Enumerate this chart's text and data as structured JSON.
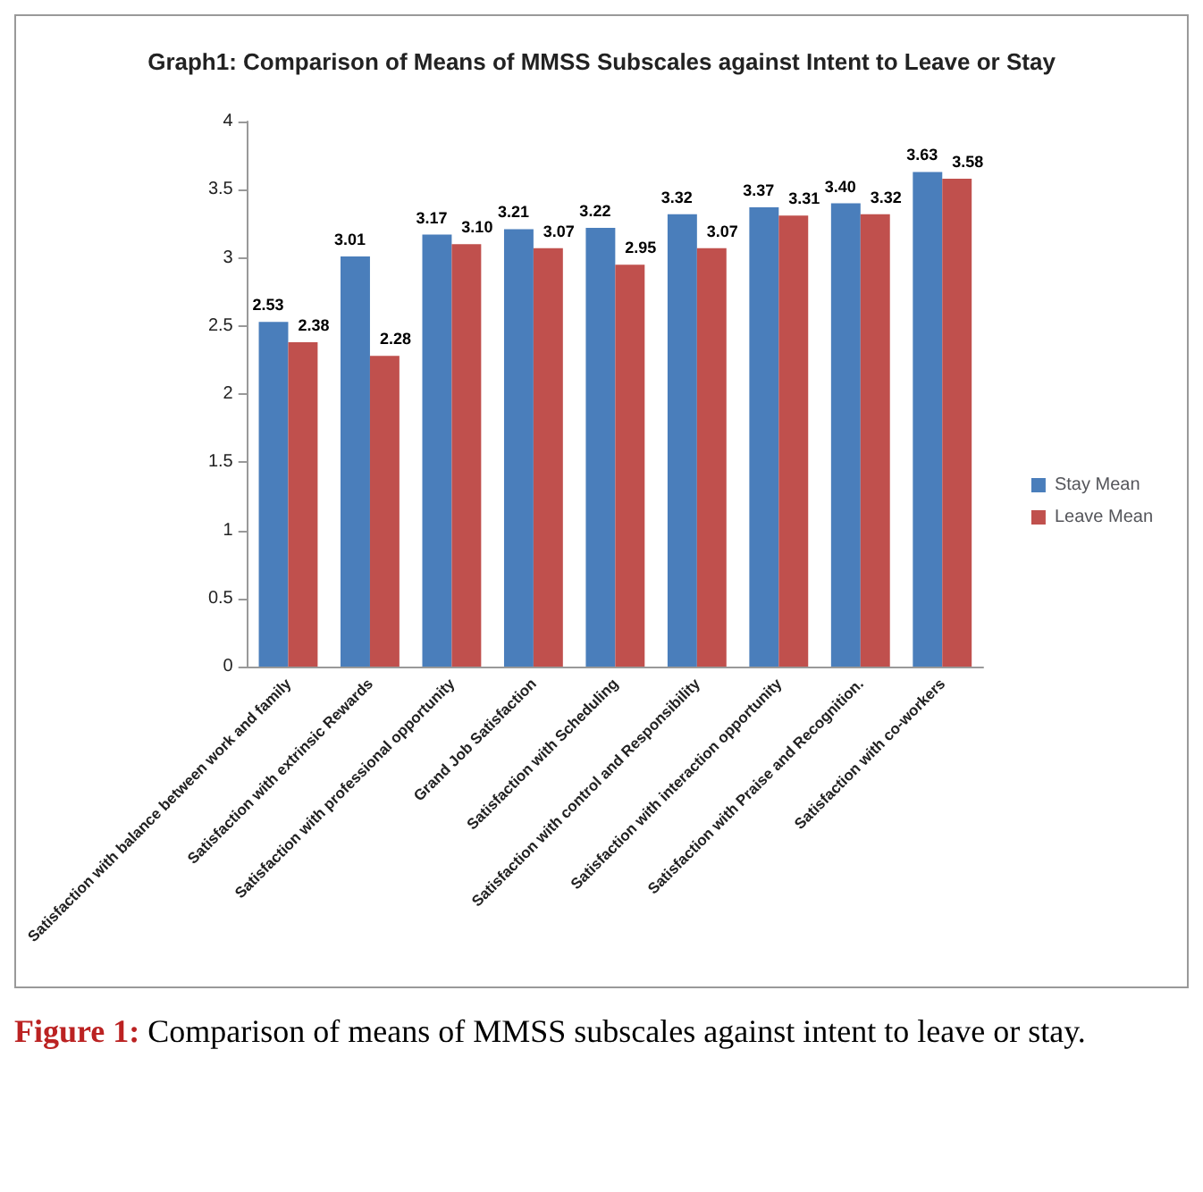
{
  "chart_data": {
    "type": "bar",
    "title": "Graph1: Comparison of Means of MMSS Subscales against Intent to Leave or Stay",
    "categories": [
      "Satisfaction with balance between work and family",
      "Satisfaction with extrinsic Rewards",
      "Satisfaction with professional opportunity",
      "Grand Job Satisfaction",
      "Satisfaction with Scheduling",
      "Satisfaction with control and Responsibility",
      "Satisfaction with interaction opportunity",
      "Satisfaction with Praise and Recognition.",
      "Satisfaction with co-workers"
    ],
    "series": [
      {
        "name": "Stay Mean",
        "color": "#4a7ebb",
        "values": [
          2.53,
          3.01,
          3.17,
          3.21,
          3.22,
          3.32,
          3.37,
          3.4,
          3.63
        ],
        "value_labels": [
          "2.53",
          "3.01",
          "3.17",
          "3.21",
          "3.22",
          "3.32",
          "3.37",
          "3.40",
          "3.63"
        ]
      },
      {
        "name": "Leave Mean",
        "color": "#c0504d",
        "values": [
          2.38,
          2.28,
          3.1,
          3.07,
          2.95,
          3.07,
          3.31,
          3.32,
          3.58
        ],
        "value_labels": [
          "2.38",
          "2.28",
          "3.10",
          "3.07",
          "2.95",
          "3.07",
          "3.31",
          "3.32",
          "3.58"
        ]
      }
    ],
    "ylim": [
      0,
      4
    ],
    "yticks": [
      0,
      0.5,
      1,
      1.5,
      2,
      2.5,
      3,
      3.5,
      4
    ],
    "grid": false,
    "legend": "right",
    "annotations": [
      "Figure 1: Comparison of means of MMSS subscales against intent to leave or stay."
    ]
  }
}
